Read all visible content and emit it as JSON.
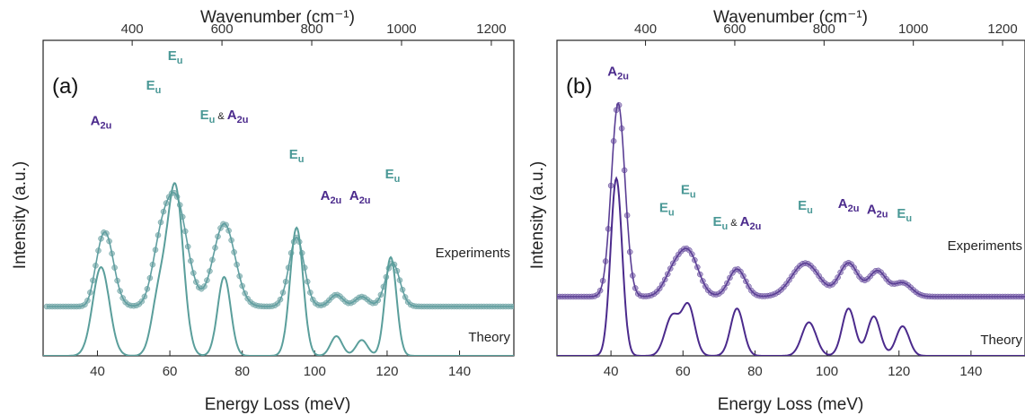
{
  "chart_data": [
    {
      "type": "line",
      "panel_label": "(a)",
      "xlabel": "Energy Loss (meV)",
      "x2label": "Wavenumber (cm⁻¹)",
      "ylabel": "Intensity (a.u.)",
      "xlim": [
        25,
        155
      ],
      "xticks": [
        "40",
        "60",
        "80",
        "100",
        "120",
        "140"
      ],
      "xtick_values": [
        40,
        60,
        80,
        100,
        120,
        140
      ],
      "x2ticks": [
        "400",
        "600",
        "800",
        "1000",
        "1200"
      ],
      "x2tick_values": [
        400,
        600,
        800,
        1000,
        1200
      ],
      "colors": {
        "experiment": "#5f9ea0",
        "marker": "#8fb6b5",
        "theory": "#5a9e9b",
        "eu": "#4a9896",
        "a2u": "#4b2a8c"
      },
      "series": [
        {
          "name": "Experiments",
          "kind": "experiment",
          "baseline": 0.25,
          "onset": 37,
          "peaks": [
            [
              42,
              0.38,
              2.4
            ],
            [
              57,
              0.18,
              2.2
            ],
            [
              61.5,
              0.55,
              3.2
            ],
            [
              75,
              0.42,
              3.0
            ],
            [
              95,
              0.35,
              2.1
            ],
            [
              106,
              0.06,
              1.8
            ],
            [
              113,
              0.05,
              1.8
            ],
            [
              121.5,
              0.22,
              2.0
            ]
          ]
        },
        {
          "name": "Theory",
          "kind": "theory",
          "baseline": 0.0,
          "onset": 0,
          "peaks": [
            [
              41,
              0.45,
              2.3
            ],
            [
              57,
              0.3,
              2.0
            ],
            [
              61.5,
              0.85,
              2.2
            ],
            [
              75,
              0.4,
              1.8
            ],
            [
              95,
              0.65,
              1.8
            ],
            [
              106,
              0.1,
              1.6
            ],
            [
              113,
              0.08,
              1.6
            ],
            [
              121,
              0.5,
              1.6
            ]
          ]
        }
      ],
      "annotations": [
        {
          "parts": [
            {
              "t": "A",
              "type": "a2u"
            },
            {
              "sub": "2u",
              "type": "a2u"
            }
          ],
          "x": 41,
          "y": 1.17
        },
        {
          "parts": [
            {
              "t": "E",
              "type": "eu"
            },
            {
              "sub": "u",
              "type": "eu"
            }
          ],
          "x": 55.5,
          "y": 1.35
        },
        {
          "parts": [
            {
              "t": "E",
              "type": "eu"
            },
            {
              "sub": "u",
              "type": "eu"
            }
          ],
          "x": 61.5,
          "y": 1.5
        },
        {
          "parts": [
            {
              "t": "E",
              "type": "eu"
            },
            {
              "sub": "u",
              "type": "eu"
            },
            {
              "amp": " & ",
              "type": "amp"
            },
            {
              "t": "A",
              "type": "a2u"
            },
            {
              "sub": "2u",
              "type": "a2u"
            }
          ],
          "x": 75,
          "y": 1.2
        },
        {
          "parts": [
            {
              "t": "E",
              "type": "eu"
            },
            {
              "sub": "u",
              "type": "eu"
            }
          ],
          "x": 95,
          "y": 1.0
        },
        {
          "parts": [
            {
              "t": "A",
              "type": "a2u"
            },
            {
              "sub": "2u",
              "type": "a2u"
            }
          ],
          "x": 104.5,
          "y": 0.79
        },
        {
          "parts": [
            {
              "t": "A",
              "type": "a2u"
            },
            {
              "sub": "2u",
              "type": "a2u"
            }
          ],
          "x": 112.5,
          "y": 0.79
        },
        {
          "parts": [
            {
              "t": "E",
              "type": "eu"
            },
            {
              "sub": "u",
              "type": "eu"
            }
          ],
          "x": 121.5,
          "y": 0.9
        }
      ],
      "curve_labels": {
        "experiments": "Experiments",
        "theory": "Theory"
      }
    },
    {
      "type": "line",
      "panel_label": "(b)",
      "xlabel": "Energy Loss (meV)",
      "x2label": "Wavenumber (cm⁻¹)",
      "ylabel": "Intensity (a.u.)",
      "xlim": [
        25,
        155
      ],
      "xticks": [
        "40",
        "60",
        "80",
        "100",
        "120",
        "140"
      ],
      "xtick_values": [
        40,
        60,
        80,
        100,
        120,
        140
      ],
      "x2ticks": [
        "400",
        "600",
        "800",
        "1000",
        "1200"
      ],
      "x2tick_values": [
        400,
        600,
        800,
        1000,
        1200
      ],
      "colors": {
        "experiment": "#5a3e94",
        "marker": "#9a86bf",
        "theory": "#4b2a8c",
        "eu": "#4a9896",
        "a2u": "#4b2a8c"
      },
      "series": [
        {
          "name": "Experiments",
          "kind": "experiment",
          "baseline": 0.3,
          "onset": 0,
          "peaks": [
            [
              42,
              0.98,
              1.9
            ],
            [
              57,
              0.1,
              2.5
            ],
            [
              61.5,
              0.22,
              2.8
            ],
            [
              75,
              0.14,
              2.3
            ],
            [
              94,
              0.17,
              3.8
            ],
            [
              106,
              0.17,
              2.6
            ],
            [
              114,
              0.13,
              2.4
            ],
            [
              121,
              0.07,
              2.5
            ]
          ]
        },
        {
          "name": "Theory",
          "kind": "theory",
          "baseline": 0.0,
          "onset": 0,
          "peaks": [
            [
              41.5,
              0.9,
              1.6
            ],
            [
              57,
              0.2,
              2.0
            ],
            [
              61.5,
              0.25,
              1.8
            ],
            [
              75,
              0.24,
              1.8
            ],
            [
              95,
              0.17,
              2.0
            ],
            [
              106,
              0.24,
              1.8
            ],
            [
              113,
              0.2,
              1.8
            ],
            [
              121,
              0.15,
              1.8
            ]
          ]
        }
      ],
      "annotations": [
        {
          "parts": [
            {
              "t": "A",
              "type": "a2u"
            },
            {
              "sub": "2u",
              "type": "a2u"
            }
          ],
          "x": 42,
          "y": 1.42
        },
        {
          "parts": [
            {
              "t": "E",
              "type": "eu"
            },
            {
              "sub": "u",
              "type": "eu"
            }
          ],
          "x": 55.5,
          "y": 0.73
        },
        {
          "parts": [
            {
              "t": "E",
              "type": "eu"
            },
            {
              "sub": "u",
              "type": "eu"
            }
          ],
          "x": 61.5,
          "y": 0.82
        },
        {
          "parts": [
            {
              "t": "E",
              "type": "eu"
            },
            {
              "sub": "u",
              "type": "eu"
            },
            {
              "amp": " & ",
              "type": "amp"
            },
            {
              "t": "A",
              "type": "a2u"
            },
            {
              "sub": "2u",
              "type": "a2u"
            }
          ],
          "x": 75,
          "y": 0.66
        },
        {
          "parts": [
            {
              "t": "E",
              "type": "eu"
            },
            {
              "sub": "u",
              "type": "eu"
            }
          ],
          "x": 94,
          "y": 0.74
        },
        {
          "parts": [
            {
              "t": "A",
              "type": "a2u"
            },
            {
              "sub": "2u",
              "type": "a2u"
            }
          ],
          "x": 106,
          "y": 0.75
        },
        {
          "parts": [
            {
              "t": "A",
              "type": "a2u"
            },
            {
              "sub": "2u",
              "type": "a2u"
            }
          ],
          "x": 114,
          "y": 0.72
        },
        {
          "parts": [
            {
              "t": "E",
              "type": "eu"
            },
            {
              "sub": "u",
              "type": "eu"
            }
          ],
          "x": 121.5,
          "y": 0.7
        }
      ],
      "curve_labels": {
        "experiments": "Experiments",
        "theory": "Theory"
      }
    }
  ]
}
